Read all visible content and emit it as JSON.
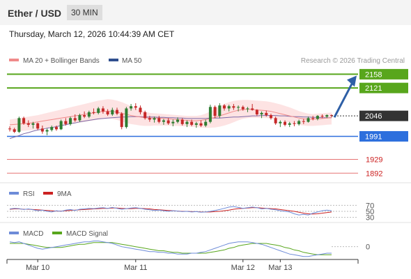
{
  "header": {
    "title": "Ether / USD",
    "timeframe": "30 MIN",
    "datetime": "Thursday, March 12, 2026 10:44:39 AM CET"
  },
  "legend": {
    "ma20": "MA 20 + Bollinger Bands",
    "ma50": "MA 50",
    "credit": "Research © 2026 Trading Central",
    "rsi": "RSI",
    "rsi_ma": "9MA",
    "macd": "MACD",
    "macd_signal": "MACD Signal"
  },
  "colors": {
    "candle_up": "#2e7d32",
    "candle_down": "#c62828",
    "ma20": "#f08a8a",
    "bollinger": "#fde3e3",
    "ma50": "#7e6aa8",
    "resistance": "#58a61c",
    "support": "#2d6fdd",
    "secondary_support": "#e57373",
    "arrow": "#2e5fa6",
    "rsi": "#6d8bd8",
    "rsi_ma": "#cc2222",
    "macd": "#6d8bd8",
    "macd_signal": "#58a61c"
  },
  "chart_data": [
    {
      "type": "candlestick",
      "ylim": [
        1870,
        2170
      ],
      "last_price": "2046",
      "levels": [
        {
          "value": 2158,
          "label": "2158",
          "kind": "resistance"
        },
        {
          "value": 2121,
          "label": "2121",
          "kind": "resistance"
        },
        {
          "value": 1991,
          "label": "1991",
          "kind": "support"
        },
        {
          "value": 1929,
          "label": "1929",
          "kind": "secondary"
        },
        {
          "value": 1892,
          "label": "1892",
          "kind": "secondary"
        }
      ],
      "ma50": [
        1985,
        1989,
        1993,
        1998,
        2001,
        2005,
        2008,
        2010,
        2013,
        2015,
        2017,
        2020,
        2022,
        2025,
        2027,
        2030,
        2032,
        2034,
        2036,
        2038,
        2039,
        2040,
        2041,
        2042,
        2043,
        2043,
        2044,
        2044,
        2044,
        2043,
        2043,
        2043,
        2042,
        2042,
        2041,
        2041,
        2040,
        2040,
        2039,
        2039,
        2039,
        2039,
        2039,
        2040,
        2040,
        2040,
        2041,
        2042,
        2043,
        2043,
        2044,
        2045,
        2046,
        2046,
        2047,
        2047,
        2047,
        2047,
        2046,
        2046,
        2045,
        2044,
        2044,
        2043,
        2043,
        2042,
        2042,
        2041,
        2041,
        2041
      ],
      "ma20": [
        2022,
        2023,
        2024,
        2025,
        2026,
        2028,
        2030,
        2032,
        2034,
        2036,
        2038,
        2040,
        2042,
        2044,
        2046,
        2048,
        2050,
        2052,
        2054,
        2056,
        2058,
        2059,
        2058,
        2056,
        2053,
        2050,
        2047,
        2045,
        2043,
        2041,
        2040,
        2040,
        2040,
        2039,
        2038,
        2037,
        2036,
        2035,
        2034,
        2033,
        2033,
        2034,
        2036,
        2039,
        2042,
        2046,
        2050,
        2054,
        2058,
        2061,
        2063,
        2064,
        2063,
        2062,
        2061,
        2060,
        2058,
        2055,
        2052,
        2049,
        2046,
        2043,
        2040,
        2038,
        2037,
        2037,
        2038,
        2039,
        2040,
        2041
      ],
      "bb_upper": [
        2036,
        2038,
        2040,
        2042,
        2044,
        2046,
        2048,
        2051,
        2054,
        2057,
        2060,
        2063,
        2066,
        2069,
        2072,
        2075,
        2078,
        2081,
        2084,
        2087,
        2089,
        2091,
        2090,
        2087,
        2083,
        2078,
        2072,
        2066,
        2061,
        2057,
        2054,
        2053,
        2052,
        2051,
        2050,
        2049,
        2048,
        2047,
        2046,
        2046,
        2046,
        2048,
        2052,
        2058,
        2065,
        2072,
        2078,
        2083,
        2086,
        2088,
        2089,
        2089,
        2088,
        2087,
        2086,
        2085,
        2083,
        2080,
        2077,
        2073,
        2069,
        2064,
        2059,
        2055,
        2052,
        2051,
        2052,
        2053,
        2054,
        2055
      ],
      "bb_lower": [
        2006,
        2006,
        2006,
        2006,
        2007,
        2008,
        2010,
        2012,
        2014,
        2016,
        2018,
        2020,
        2022,
        2024,
        2026,
        2028,
        2030,
        2032,
        2034,
        2036,
        2038,
        2039,
        2038,
        2035,
        2031,
        2027,
        2024,
        2022,
        2020,
        2019,
        2019,
        2020,
        2020,
        2020,
        2020,
        2019,
        2019,
        2018,
        2018,
        2017,
        2016,
        2015,
        2014,
        2014,
        2015,
        2017,
        2020,
        2024,
        2029,
        2034,
        2038,
        2040,
        2041,
        2041,
        2041,
        2040,
        2039,
        2037,
        2034,
        2031,
        2028,
        2025,
        2022,
        2020,
        2019,
        2019,
        2020,
        2021,
        2022,
        2023
      ],
      "candles": [
        [
          2012,
          2018,
          2004,
          2010
        ],
        [
          2010,
          2014,
          2000,
          2003
        ],
        [
          2003,
          2044,
          2000,
          2040
        ],
        [
          2040,
          2044,
          2022,
          2026
        ],
        [
          2026,
          2034,
          2016,
          2022
        ],
        [
          2022,
          2030,
          2012,
          2026
        ],
        [
          2026,
          2028,
          2008,
          2012
        ],
        [
          2012,
          2020,
          1998,
          2004
        ],
        [
          2004,
          2012,
          1994,
          2008
        ],
        [
          2008,
          2020,
          2004,
          2016
        ],
        [
          2016,
          2020,
          2006,
          2010
        ],
        [
          2010,
          2036,
          2008,
          2032
        ],
        [
          2032,
          2040,
          2020,
          2024
        ],
        [
          2024,
          2044,
          2020,
          2040
        ],
        [
          2040,
          2050,
          2030,
          2034
        ],
        [
          2034,
          2052,
          2030,
          2048
        ],
        [
          2048,
          2058,
          2040,
          2044
        ],
        [
          2044,
          2060,
          2040,
          2056
        ],
        [
          2056,
          2066,
          2050,
          2054
        ],
        [
          2054,
          2070,
          2050,
          2066
        ],
        [
          2066,
          2072,
          2052,
          2058
        ],
        [
          2058,
          2064,
          2046,
          2050
        ],
        [
          2050,
          2068,
          2046,
          2062
        ],
        [
          2062,
          2068,
          2048,
          2052
        ],
        [
          2052,
          2056,
          2010,
          2016
        ],
        [
          2016,
          2070,
          2012,
          2066
        ],
        [
          2066,
          2078,
          2060,
          2072
        ],
        [
          2072,
          2080,
          2062,
          2068
        ],
        [
          2068,
          2074,
          2050,
          2056
        ],
        [
          2056,
          2060,
          2036,
          2040
        ],
        [
          2040,
          2046,
          2030,
          2036
        ],
        [
          2036,
          2044,
          2028,
          2040
        ],
        [
          2040,
          2046,
          2026,
          2030
        ],
        [
          2030,
          2038,
          2022,
          2034
        ],
        [
          2034,
          2040,
          2022,
          2026
        ],
        [
          2026,
          2036,
          2018,
          2030
        ],
        [
          2030,
          2042,
          2026,
          2036
        ],
        [
          2036,
          2040,
          2020,
          2024
        ],
        [
          2024,
          2034,
          2016,
          2030
        ],
        [
          2030,
          2036,
          2018,
          2022
        ],
        [
          2022,
          2030,
          2014,
          2026
        ],
        [
          2026,
          2034,
          2016,
          2020
        ],
        [
          2020,
          2036,
          2016,
          2030
        ],
        [
          2030,
          2076,
          2026,
          2070
        ],
        [
          2070,
          2074,
          2040,
          2046
        ],
        [
          2046,
          2080,
          2040,
          2074
        ],
        [
          2074,
          2078,
          2060,
          2066
        ],
        [
          2066,
          2076,
          2058,
          2072
        ],
        [
          2072,
          2078,
          2062,
          2068
        ],
        [
          2068,
          2074,
          2058,
          2070
        ],
        [
          2070,
          2074,
          2060,
          2064
        ],
        [
          2064,
          2070,
          2056,
          2066
        ],
        [
          2066,
          2078,
          2060,
          2062
        ],
        [
          2062,
          2064,
          2046,
          2050
        ],
        [
          2050,
          2058,
          2040,
          2054
        ],
        [
          2054,
          2060,
          2044,
          2048
        ],
        [
          2048,
          2052,
          2036,
          2040
        ],
        [
          2040,
          2044,
          2022,
          2026
        ],
        [
          2026,
          2034,
          2016,
          2030
        ],
        [
          2030,
          2034,
          2018,
          2022
        ],
        [
          2022,
          2030,
          2016,
          2026
        ],
        [
          2026,
          2032,
          2018,
          2024
        ],
        [
          2024,
          2036,
          2020,
          2032
        ],
        [
          2032,
          2038,
          2024,
          2030
        ],
        [
          2030,
          2044,
          2028,
          2040
        ],
        [
          2040,
          2046,
          2034,
          2038
        ],
        [
          2038,
          2048,
          2034,
          2046
        ],
        [
          2046,
          2050,
          2040,
          2044
        ],
        [
          2044,
          2050,
          2040,
          2048
        ],
        [
          2048,
          2050,
          2042,
          2046
        ]
      ],
      "projection": {
        "from": 2046,
        "to": 2158
      }
    },
    {
      "type": "line",
      "name": "RSI",
      "ylim": [
        20,
        80
      ],
      "levels": [
        70,
        50,
        30
      ],
      "tick_labels": [
        "70",
        "50",
        "30"
      ],
      "rsi": [
        58,
        60,
        59,
        56,
        58,
        55,
        52,
        54,
        50,
        48,
        52,
        50,
        54,
        56,
        53,
        57,
        58,
        60,
        59,
        61,
        62,
        60,
        63,
        60,
        57,
        59,
        61,
        62,
        60,
        57,
        55,
        53,
        54,
        52,
        50,
        52,
        51,
        49,
        50,
        48,
        49,
        47,
        48,
        50,
        53,
        56,
        60,
        64,
        66,
        63,
        60,
        62,
        64,
        62,
        58,
        60,
        57,
        55,
        52,
        50,
        48,
        42,
        38,
        40,
        38,
        44,
        48,
        52,
        54,
        52
      ],
      "rsi_ma": [
        57,
        58,
        58,
        57,
        57,
        56,
        55,
        54,
        53,
        52,
        51,
        51,
        52,
        53,
        54,
        55,
        56,
        57,
        58,
        59,
        60,
        60,
        61,
        61,
        60,
        59,
        59,
        60,
        60,
        59,
        58,
        56,
        55,
        54,
        53,
        52,
        51,
        50,
        50,
        49,
        49,
        48,
        48,
        48,
        49,
        50,
        52,
        54,
        57,
        59,
        60,
        61,
        62,
        62,
        61,
        60,
        59,
        58,
        56,
        54,
        52,
        50,
        47,
        44,
        42,
        41,
        42,
        44,
        46,
        48
      ]
    },
    {
      "type": "line",
      "name": "MACD",
      "ylim": [
        -14,
        10
      ],
      "zero_label": "0",
      "macd": [
        6,
        5,
        6,
        4,
        2,
        0,
        -2,
        -3,
        -2,
        -1,
        0,
        1,
        2,
        3,
        4,
        5,
        6,
        6,
        7,
        7,
        6,
        5,
        4,
        2,
        0,
        -1,
        -2,
        -3,
        -4,
        -5,
        -6,
        -6,
        -7,
        -7,
        -8,
        -8,
        -9,
        -9,
        -9,
        -8,
        -8,
        -7,
        -6,
        -4,
        -2,
        0,
        2,
        4,
        5,
        6,
        6,
        6,
        5,
        4,
        3,
        1,
        -1,
        -3,
        -5,
        -7,
        -9,
        -10,
        -11,
        -12,
        -12,
        -11,
        -10,
        -9,
        -8,
        -8
      ],
      "macd_signal": [
        4,
        4,
        4,
        4,
        3,
        2,
        1,
        0,
        -1,
        -1,
        -1,
        -1,
        0,
        1,
        2,
        3,
        3,
        4,
        5,
        5,
        5,
        5,
        5,
        4,
        3,
        2,
        1,
        0,
        -1,
        -2,
        -3,
        -4,
        -5,
        -5,
        -6,
        -7,
        -7,
        -8,
        -8,
        -8,
        -8,
        -8,
        -8,
        -7,
        -6,
        -5,
        -4,
        -2,
        -1,
        1,
        2,
        3,
        4,
        4,
        4,
        4,
        3,
        2,
        1,
        -1,
        -2,
        -4,
        -5,
        -7,
        -8,
        -9,
        -10,
        -10,
        -10,
        -10
      ]
    }
  ],
  "x_axis": {
    "labels": [
      {
        "index": 6,
        "text": "Mar 10"
      },
      {
        "index": 27,
        "text": "Mar 11"
      },
      {
        "index": 50,
        "text": "Mar 12"
      },
      {
        "index": 58,
        "text": "Mar 13"
      }
    ]
  }
}
